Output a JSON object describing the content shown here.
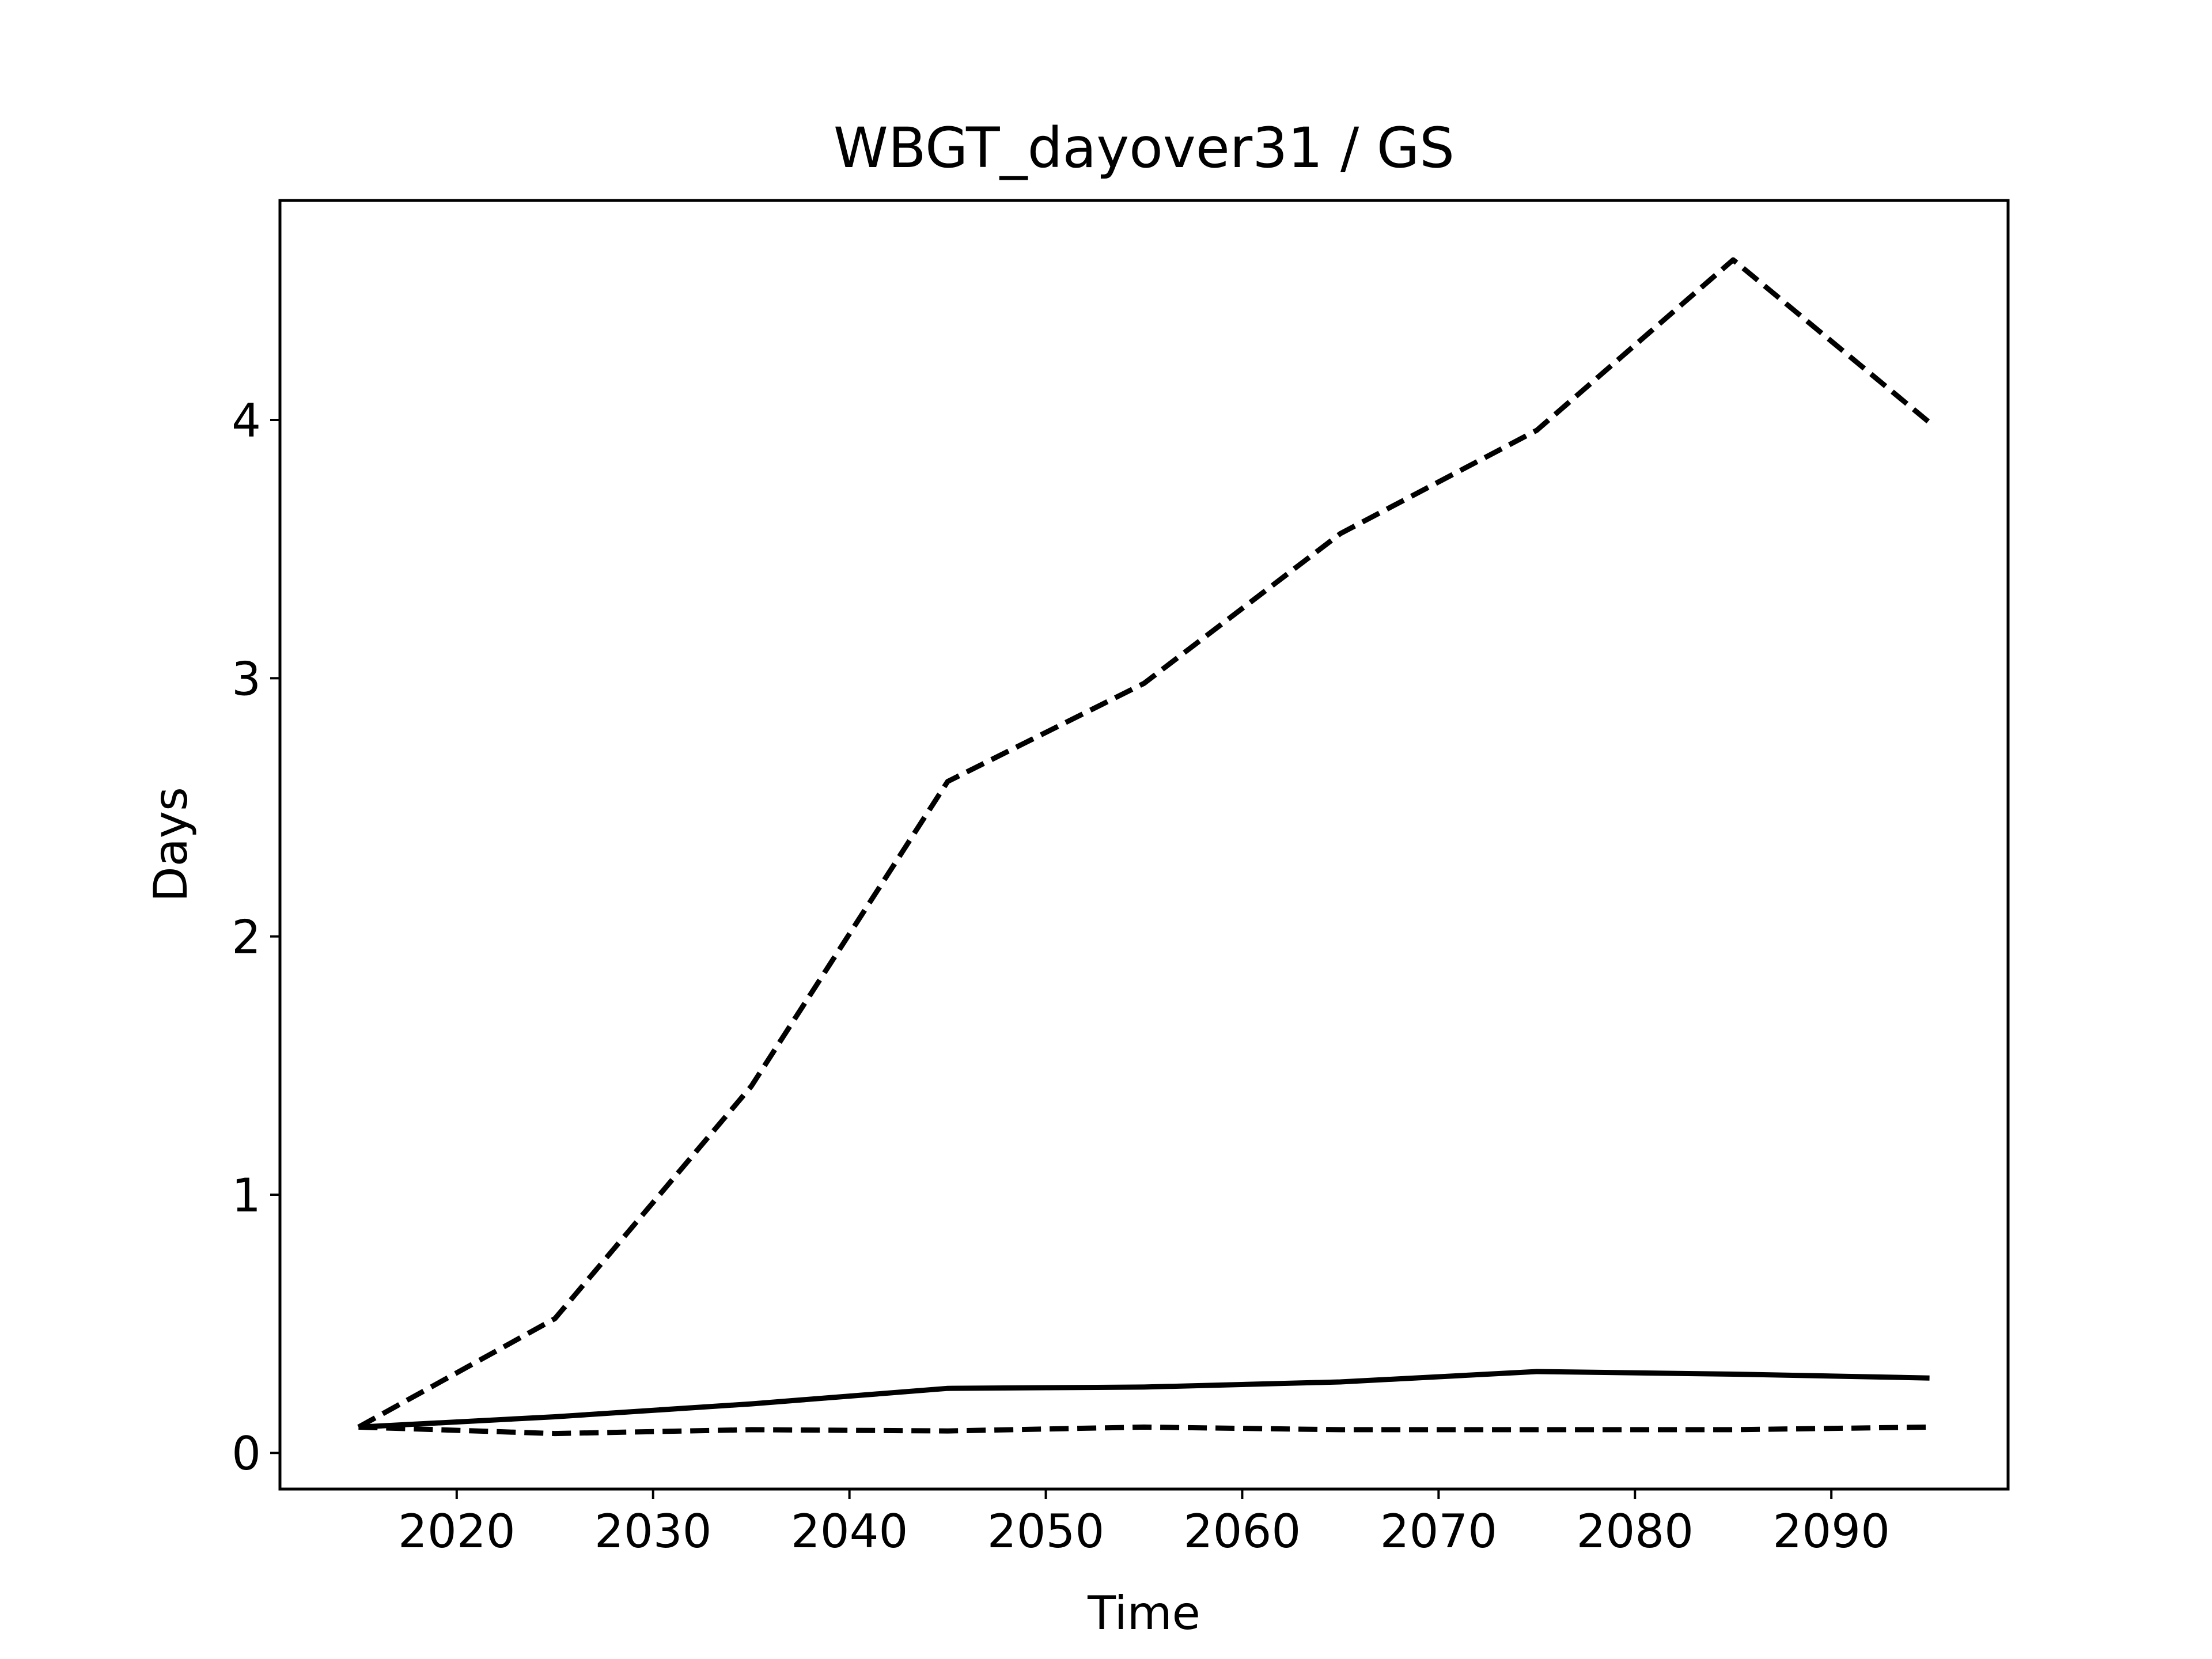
{
  "chart_data": {
    "type": "line",
    "title": "WBGT_dayover31 / GS",
    "xlabel": "Time",
    "ylabel": "Days",
    "xlim": [
      2011,
      2099
    ],
    "ylim": [
      -0.14,
      4.85
    ],
    "xticks": [
      2020,
      2030,
      2040,
      2050,
      2060,
      2070,
      2080,
      2090
    ],
    "yticks": [
      0,
      1,
      2,
      3,
      4
    ],
    "grid": false,
    "legend": "none",
    "x": [
      2015,
      2025,
      2035,
      2045,
      2055,
      2065,
      2075,
      2085,
      2095
    ],
    "series": [
      {
        "style": "dashed",
        "color": "#000000",
        "values": [
          0.1,
          0.52,
          1.42,
          2.6,
          2.98,
          3.56,
          3.96,
          4.62,
          3.99
        ]
      },
      {
        "style": "solid",
        "color": "#000000",
        "values": [
          0.1,
          0.14,
          0.19,
          0.25,
          0.255,
          0.275,
          0.315,
          0.305,
          0.29
        ]
      },
      {
        "style": "dashed",
        "color": "#000000",
        "values": [
          0.1,
          0.075,
          0.09,
          0.085,
          0.1,
          0.09,
          0.09,
          0.09,
          0.1
        ]
      }
    ]
  }
}
